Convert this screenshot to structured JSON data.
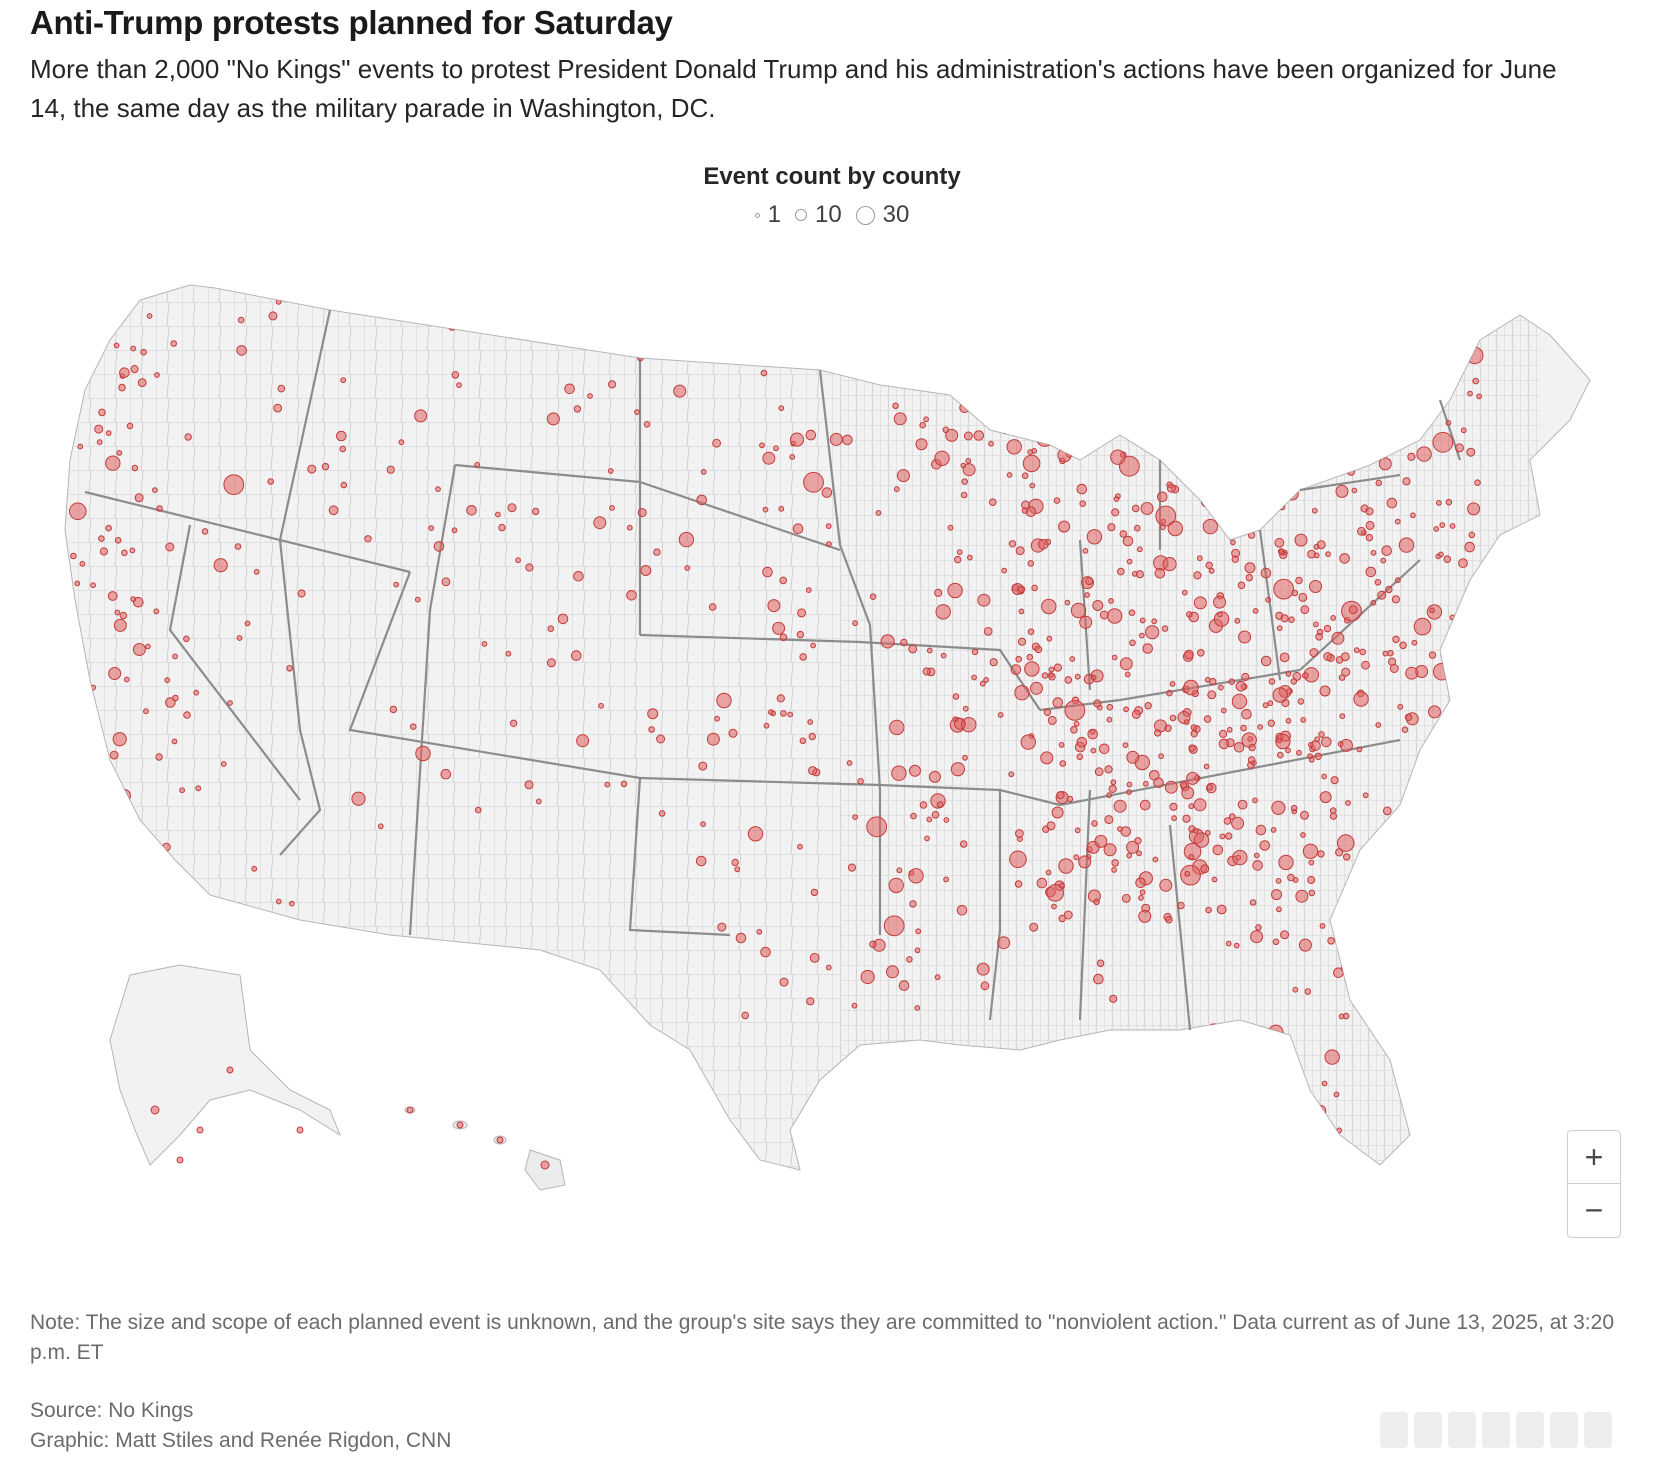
{
  "header": {
    "title": "Anti-Trump protests planned for Saturday",
    "subtitle": "More than 2,000 \"No Kings\" events to protest President Donald Trump and his administration's actions have been organized for June 14, the same day as the military parade in Washington, DC."
  },
  "legend": {
    "title": "Event count by county",
    "items": [
      {
        "label": "1",
        "value": 1
      },
      {
        "label": "10",
        "value": 10
      },
      {
        "label": "30",
        "value": 30
      }
    ]
  },
  "map": {
    "type": "proportional-symbol-map",
    "region": "United States counties",
    "colors": {
      "land": "#f2f2f2",
      "county_border": "#c8c8c8",
      "state_border": "#8a8a8a",
      "dot_fill": "#e06060",
      "dot_stroke": "#c23b3b"
    }
  },
  "zoom": {
    "in_label": "+",
    "out_label": "−"
  },
  "footer": {
    "note": "Note: The size and scope of each planned event is unknown, and the group's site says they are committed to \"nonviolent action.\" Data current as of June 13, 2025, at 3:20 p.m. ET",
    "source": "Source: No Kings",
    "credit": "Graphic: Matt Stiles and Renée Rigdon, CNN"
  }
}
